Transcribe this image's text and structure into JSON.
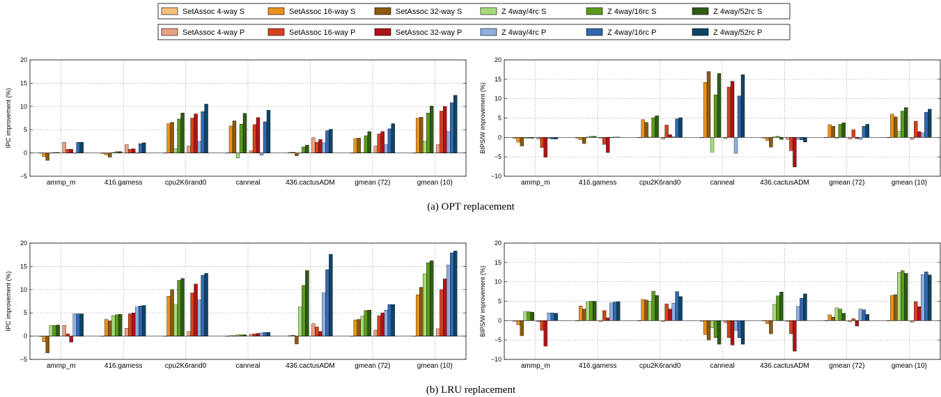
{
  "legend": {
    "rows": [
      [
        {
          "label": "SetAssoc 4-way S",
          "color": "#F4C07A"
        },
        {
          "label": "SetAssoc 16-way S",
          "color": "#E9921F"
        },
        {
          "label": "SetAssoc 32-way S",
          "color": "#8B5A0E"
        },
        {
          "label": "Z 4way/4rc S",
          "color": "#A6DB7C"
        },
        {
          "label": "Z 4way/16rc S",
          "color": "#5C9A1F"
        },
        {
          "label": "Z 4way/52rc S",
          "color": "#2E5A16"
        }
      ],
      [
        {
          "label": "SetAssoc 4-way P",
          "color": "#E8A083"
        },
        {
          "label": "SetAssoc 16-way P",
          "color": "#D4431A"
        },
        {
          "label": "SetAssoc 32-way P",
          "color": "#B0121A"
        },
        {
          "label": "Z 4way/4rc P",
          "color": "#8DB0E0"
        },
        {
          "label": "Z 4way/16rc P",
          "color": "#3468B0"
        },
        {
          "label": "Z 4way/52rc P",
          "color": "#0E4466"
        }
      ]
    ]
  },
  "captions": [
    "(a) OPT replacement",
    "(b) LRU replacement"
  ],
  "chart_data": [
    {
      "type": "bar",
      "ylabel": "IPC improvement (%)",
      "ylim": [
        -5,
        20
      ],
      "yticks": [
        "−5",
        "0",
        "5",
        "10",
        "15",
        "20"
      ],
      "grid": true,
      "categories": [
        "ammp_m",
        "416.gamess",
        "cpu2K6rand0",
        "canneal",
        "436.cactusADM",
        "gmean (72)",
        "gmean (10)"
      ],
      "series": [
        {
          "name": "SetAssoc 4-way S",
          "values": [
            0,
            -0.2,
            0,
            0,
            0.1,
            0,
            0
          ]
        },
        {
          "name": "SetAssoc 16-way S",
          "values": [
            -0.8,
            -0.4,
            6.3,
            5.8,
            0.2,
            3.1,
            7.5
          ]
        },
        {
          "name": "SetAssoc 32-way S",
          "values": [
            -1.6,
            -0.9,
            6.6,
            6.9,
            -0.6,
            3.2,
            7.7
          ]
        },
        {
          "name": "Z 4way/4rc S",
          "values": [
            0,
            0.1,
            0.9,
            -1.1,
            0,
            0.1,
            2.5
          ]
        },
        {
          "name": "Z 4way/16rc S",
          "values": [
            0.1,
            0.3,
            7.3,
            6.2,
            1.3,
            3.7,
            8.6
          ]
        },
        {
          "name": "Z 4way/52rc S",
          "values": [
            0.1,
            0.3,
            8.6,
            8.5,
            1.7,
            4.6,
            10.1
          ]
        },
        {
          "name": "SetAssoc 4-way P",
          "values": [
            2.3,
            1.8,
            1.5,
            0.5,
            3.3,
            1.5,
            1.8
          ]
        },
        {
          "name": "SetAssoc 16-way P",
          "values": [
            0.8,
            0.8,
            7.5,
            6.1,
            2.3,
            4.1,
            9.0
          ]
        },
        {
          "name": "SetAssoc 32-way P",
          "values": [
            0.8,
            0.9,
            8.4,
            7.6,
            2.9,
            4.6,
            10.0
          ]
        },
        {
          "name": "Z 4way/4rc P",
          "values": [
            0,
            0,
            2.5,
            -0.5,
            2.2,
            1.8,
            4.6
          ]
        },
        {
          "name": "Z 4way/16rc P",
          "values": [
            2.3,
            2.0,
            8.9,
            6.7,
            4.8,
            5.2,
            10.8
          ]
        },
        {
          "name": "Z 4way/52rc P",
          "values": [
            2.3,
            2.2,
            10.5,
            9.2,
            5.1,
            6.3,
            12.4
          ]
        }
      ]
    },
    {
      "type": "bar",
      "ylabel": "BIPS/W improvement (%)",
      "ylim": [
        -10,
        20
      ],
      "yticks": [
        "−10",
        "−5",
        "0",
        "5",
        "10",
        "15",
        "20"
      ],
      "grid": true,
      "categories": [
        "ammp_m",
        "416.gamess",
        "cpu2K6rand0",
        "canneal",
        "436.cactusADM",
        "gmean (72)",
        "gmean (10)"
      ],
      "series": [
        {
          "name": "SetAssoc 4-way S",
          "values": [
            -0.3,
            -0.2,
            0,
            0,
            -0.2,
            0,
            0
          ]
        },
        {
          "name": "SetAssoc 16-way S",
          "values": [
            -1.2,
            -0.6,
            4.6,
            14.2,
            -0.8,
            3.3,
            6.0
          ]
        },
        {
          "name": "SetAssoc 32-way S",
          "values": [
            -2.2,
            -1.6,
            3.9,
            17.0,
            -2.5,
            2.9,
            5.3
          ]
        },
        {
          "name": "Z 4way/4rc S",
          "values": [
            -0.2,
            0.1,
            0.1,
            -3.8,
            0.2,
            -0.2,
            1.6
          ]
        },
        {
          "name": "Z 4way/16rc S",
          "values": [
            -0.2,
            0.3,
            5.1,
            11.0,
            0.3,
            3.4,
            6.8
          ]
        },
        {
          "name": "Z 4way/52rc S",
          "values": [
            -0.2,
            0.3,
            5.6,
            16.5,
            -0.5,
            3.8,
            7.7
          ]
        },
        {
          "name": "SetAssoc 4-way P",
          "values": [
            -0.4,
            -0.2,
            -0.4,
            -0.3,
            -0.5,
            -0.4,
            -0.5
          ]
        },
        {
          "name": "SetAssoc 16-way P",
          "values": [
            -2.6,
            -1.8,
            3.2,
            13.0,
            -3.4,
            2.0,
            4.2
          ]
        },
        {
          "name": "SetAssoc 32-way P",
          "values": [
            -5.1,
            -3.9,
            0.7,
            14.5,
            -7.6,
            -0.3,
            1.5
          ]
        },
        {
          "name": "Z 4way/4rc P",
          "values": [
            -0.3,
            0,
            0.2,
            -4.1,
            -0.5,
            -0.5,
            1.2
          ]
        },
        {
          "name": "Z 4way/16rc P",
          "values": [
            -0.4,
            0.1,
            4.8,
            10.7,
            -0.6,
            2.9,
            6.5
          ]
        },
        {
          "name": "Z 4way/52rc P",
          "values": [
            -0.4,
            0.1,
            5.1,
            16.2,
            -1.2,
            3.4,
            7.3
          ]
        }
      ]
    },
    {
      "type": "bar",
      "ylabel": "IPC improvement (%)",
      "ylim": [
        -5,
        20
      ],
      "yticks": [
        "−5",
        "0",
        "5",
        "10",
        "15",
        "20"
      ],
      "grid": true,
      "categories": [
        "ammp_m",
        "416.gamess",
        "cpu2K6rand0",
        "canneal",
        "436.cactusADM",
        "gmean (72)",
        "gmean (10)"
      ],
      "series": [
        {
          "name": "SetAssoc 4-way S",
          "values": [
            0,
            0,
            0,
            0,
            0.1,
            0,
            0
          ]
        },
        {
          "name": "SetAssoc 16-way S",
          "values": [
            -1.2,
            3.6,
            8.6,
            0.1,
            0.2,
            3.5,
            8.9
          ]
        },
        {
          "name": "SetAssoc 32-way S",
          "values": [
            -3.6,
            3.3,
            10.0,
            0.1,
            -1.7,
            3.6,
            10.5
          ]
        },
        {
          "name": "Z 4way/4rc S",
          "values": [
            2.3,
            4.4,
            6.7,
            0.3,
            6.3,
            4.3,
            13.4
          ]
        },
        {
          "name": "Z 4way/16rc S",
          "values": [
            2.3,
            4.6,
            12.0,
            0.3,
            10.9,
            5.5,
            15.8
          ]
        },
        {
          "name": "Z 4way/52rc S",
          "values": [
            2.4,
            4.7,
            12.4,
            0.3,
            14.1,
            5.6,
            16.2
          ]
        },
        {
          "name": "SetAssoc 4-way P",
          "values": [
            2.3,
            1.7,
            1.0,
            0.4,
            2.7,
            1.3,
            1.6
          ]
        },
        {
          "name": "SetAssoc 16-way P",
          "values": [
            0.5,
            4.8,
            9.3,
            0.5,
            2.0,
            4.4,
            10.0
          ]
        },
        {
          "name": "SetAssoc 32-way P",
          "values": [
            -1.3,
            5.0,
            11.2,
            0.6,
            1.0,
            5.0,
            12.3
          ]
        },
        {
          "name": "Z 4way/4rc P",
          "values": [
            4.8,
            6.3,
            7.8,
            0.7,
            9.3,
            5.6,
            15.3
          ]
        },
        {
          "name": "Z 4way/16rc P",
          "values": [
            4.8,
            6.5,
            13.1,
            0.8,
            14.3,
            6.8,
            17.9
          ]
        },
        {
          "name": "Z 4way/52rc P",
          "values": [
            4.8,
            6.6,
            13.5,
            0.8,
            17.6,
            6.8,
            18.3
          ]
        }
      ]
    },
    {
      "type": "bar",
      "ylabel": "BIPS/W improvement (%)",
      "ylim": [
        -10,
        20
      ],
      "yticks": [
        "−10",
        "−5",
        "0",
        "5",
        "10",
        "15",
        "20"
      ],
      "grid": true,
      "categories": [
        "ammp_m",
        "416.gamess",
        "cpu2K6rand0",
        "canneal",
        "436.cactusADM",
        "gmean (72)",
        "gmean (10)"
      ],
      "series": [
        {
          "name": "SetAssoc 4-way S",
          "values": [
            -0.2,
            0,
            0,
            -0.2,
            0,
            0,
            0
          ]
        },
        {
          "name": "SetAssoc 16-way S",
          "values": [
            -1.1,
            3.8,
            5.5,
            -3.6,
            -0.8,
            1.5,
            6.5
          ]
        },
        {
          "name": "SetAssoc 32-way S",
          "values": [
            -3.9,
            3.0,
            5.3,
            -5.0,
            -3.4,
            0.9,
            6.7
          ]
        },
        {
          "name": "Z 4way/4rc S",
          "values": [
            2.3,
            4.8,
            5.0,
            -1.9,
            4.2,
            3.3,
            12.4
          ]
        },
        {
          "name": "Z 4way/16rc S",
          "values": [
            2.3,
            5.0,
            7.6,
            -4.4,
            6.4,
            3.0,
            12.9
          ]
        },
        {
          "name": "Z 4way/52rc S",
          "values": [
            2.2,
            5.0,
            6.5,
            -6.1,
            7.4,
            1.9,
            12.2
          ]
        },
        {
          "name": "SetAssoc 4-way P",
          "values": [
            -0.3,
            -0.2,
            -0.2,
            -0.5,
            -0.2,
            -0.3,
            -0.4
          ]
        },
        {
          "name": "SetAssoc 16-way P",
          "values": [
            -2.5,
            2.6,
            4.3,
            -4.4,
            -3.4,
            0.5,
            4.9
          ]
        },
        {
          "name": "SetAssoc 32-way P",
          "values": [
            -6.6,
            0.7,
            3.0,
            -6.3,
            -7.9,
            -1.4,
            3.6
          ]
        },
        {
          "name": "Z 4way/4rc P",
          "values": [
            2.0,
            4.6,
            4.5,
            -2.5,
            3.7,
            3.0,
            11.9
          ]
        },
        {
          "name": "Z 4way/16rc P",
          "values": [
            2.0,
            4.8,
            7.5,
            -4.4,
            5.8,
            2.8,
            12.6
          ]
        },
        {
          "name": "Z 4way/52rc P",
          "values": [
            1.9,
            4.9,
            6.2,
            -6.1,
            6.9,
            1.6,
            11.8
          ]
        }
      ]
    }
  ]
}
